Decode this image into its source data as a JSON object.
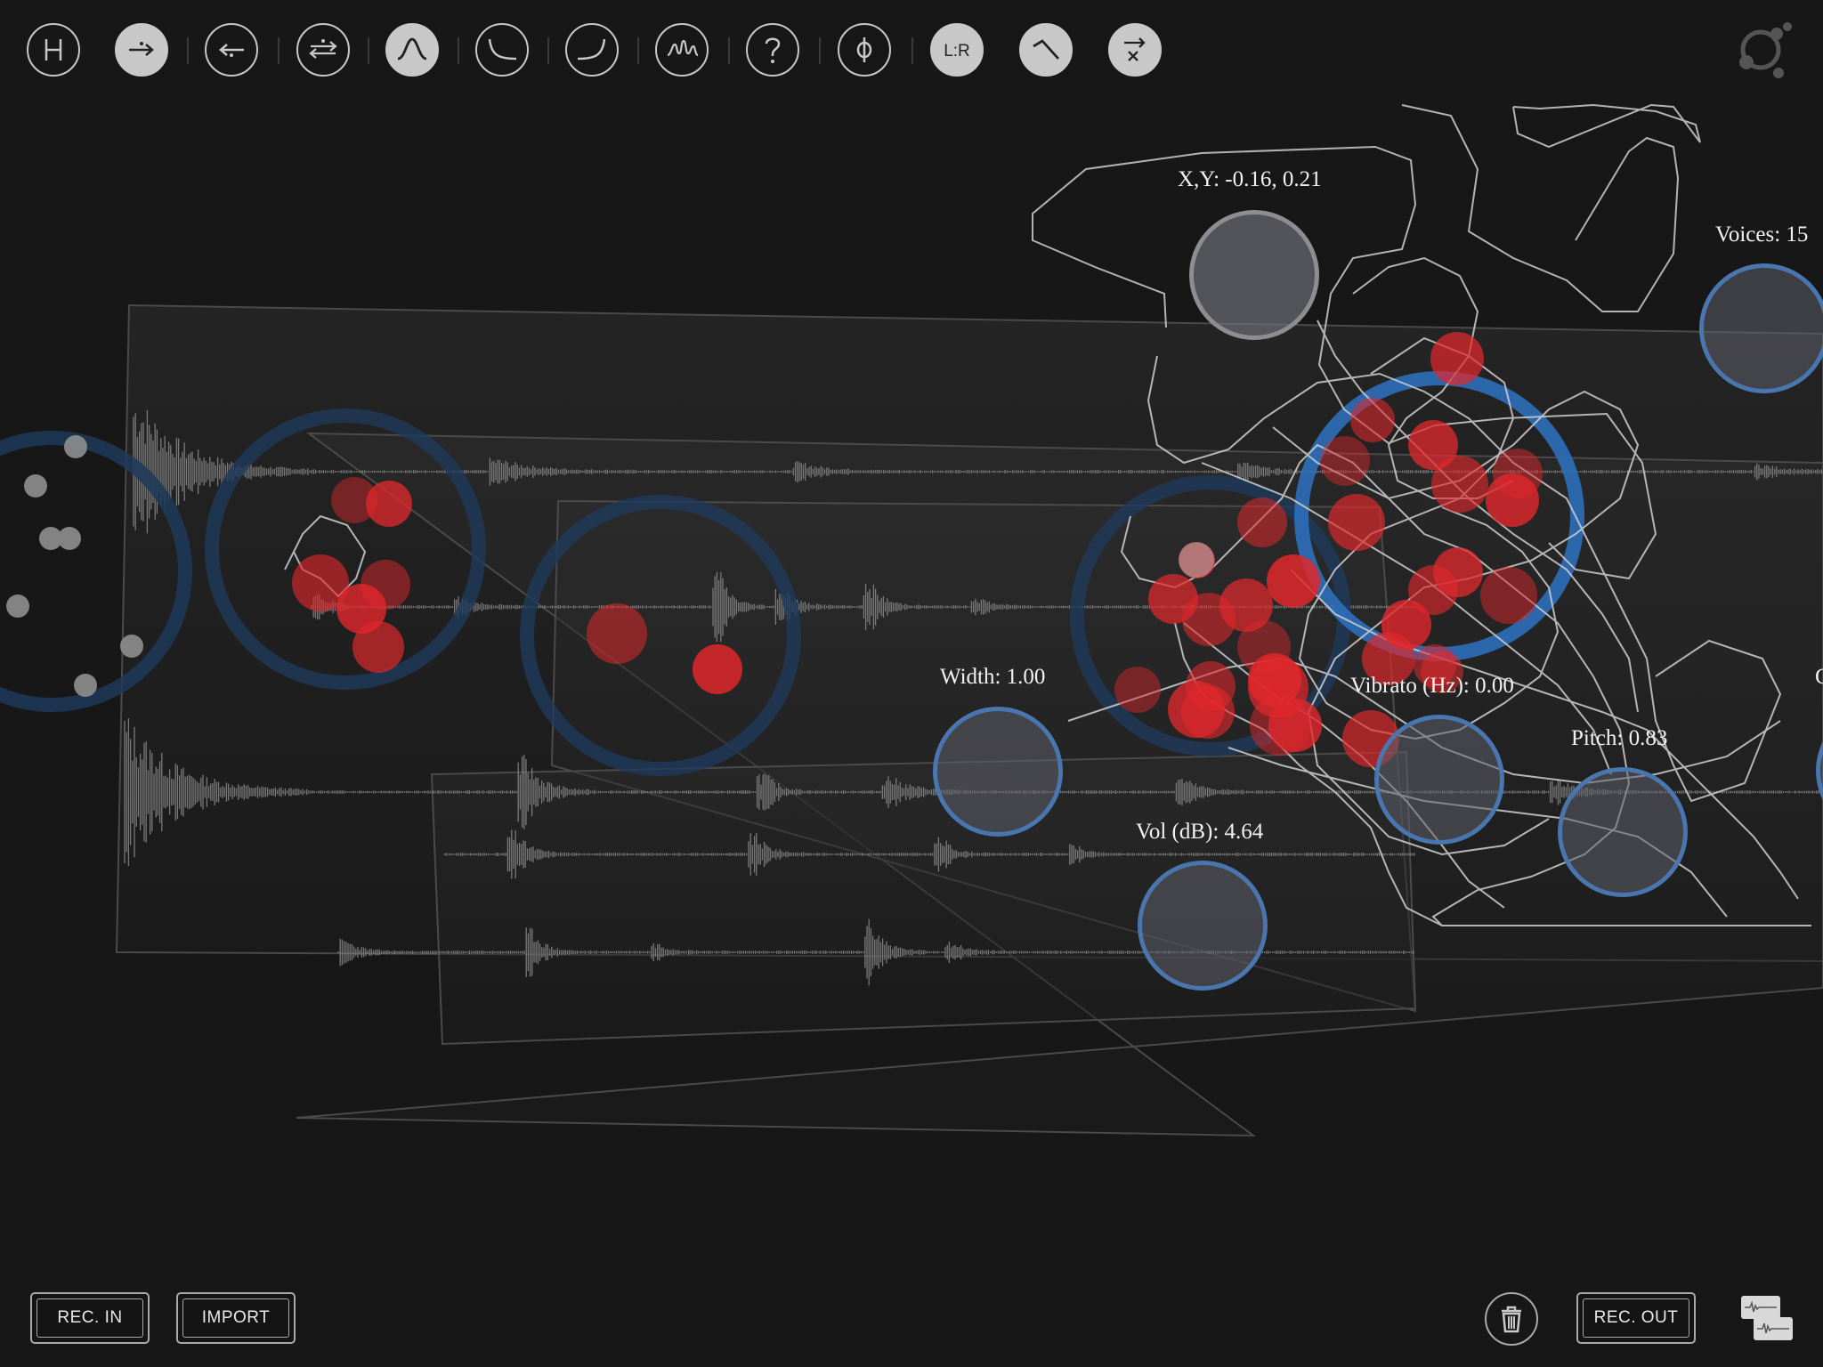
{
  "toolbar": {
    "tools": [
      {
        "name": "help-h-icon",
        "active": false,
        "text": "H"
      },
      {
        "name": "arrow-forward-icon",
        "active": true
      },
      {
        "name": "arrow-back-icon",
        "active": false
      },
      {
        "name": "arrows-bidirectional-icon",
        "active": false
      },
      {
        "name": "bell-curve-icon",
        "active": true
      },
      {
        "name": "decay-curve-icon",
        "active": false
      },
      {
        "name": "rise-curve-icon",
        "active": false
      },
      {
        "name": "waveform-icon",
        "active": false
      },
      {
        "name": "question-icon",
        "active": false,
        "text": "?"
      },
      {
        "name": "phase-icon",
        "active": false,
        "text": "ϕ"
      },
      {
        "name": "stereo-lr-icon",
        "active": true,
        "text": "L:R"
      },
      {
        "name": "attack-envelope-icon",
        "active": true
      },
      {
        "name": "randomize-x-icon",
        "active": true,
        "text": "x"
      }
    ],
    "logo_icon": "orbit-logo-icon"
  },
  "params": {
    "xy": "X,Y: -0.16, 0.21",
    "voices": "Voices: 15",
    "width": "Width: 1.00",
    "vibrato": "Vibrato (Hz): 0.00",
    "pitch": "Pitch: 0.83",
    "volume": "Vol (dB): 4.64",
    "cut": "C"
  },
  "buttons": {
    "rec_in": "REC. IN",
    "import": "IMPORT",
    "rec_out": "REC. OUT",
    "trash_icon": "trash-icon",
    "layers_icon": "waveform-layers-icon"
  },
  "colors": {
    "background": "#171717",
    "grain_red": "#e0282c",
    "control_blue": "#4a76b0",
    "icon_gray": "#c8c8c8"
  }
}
